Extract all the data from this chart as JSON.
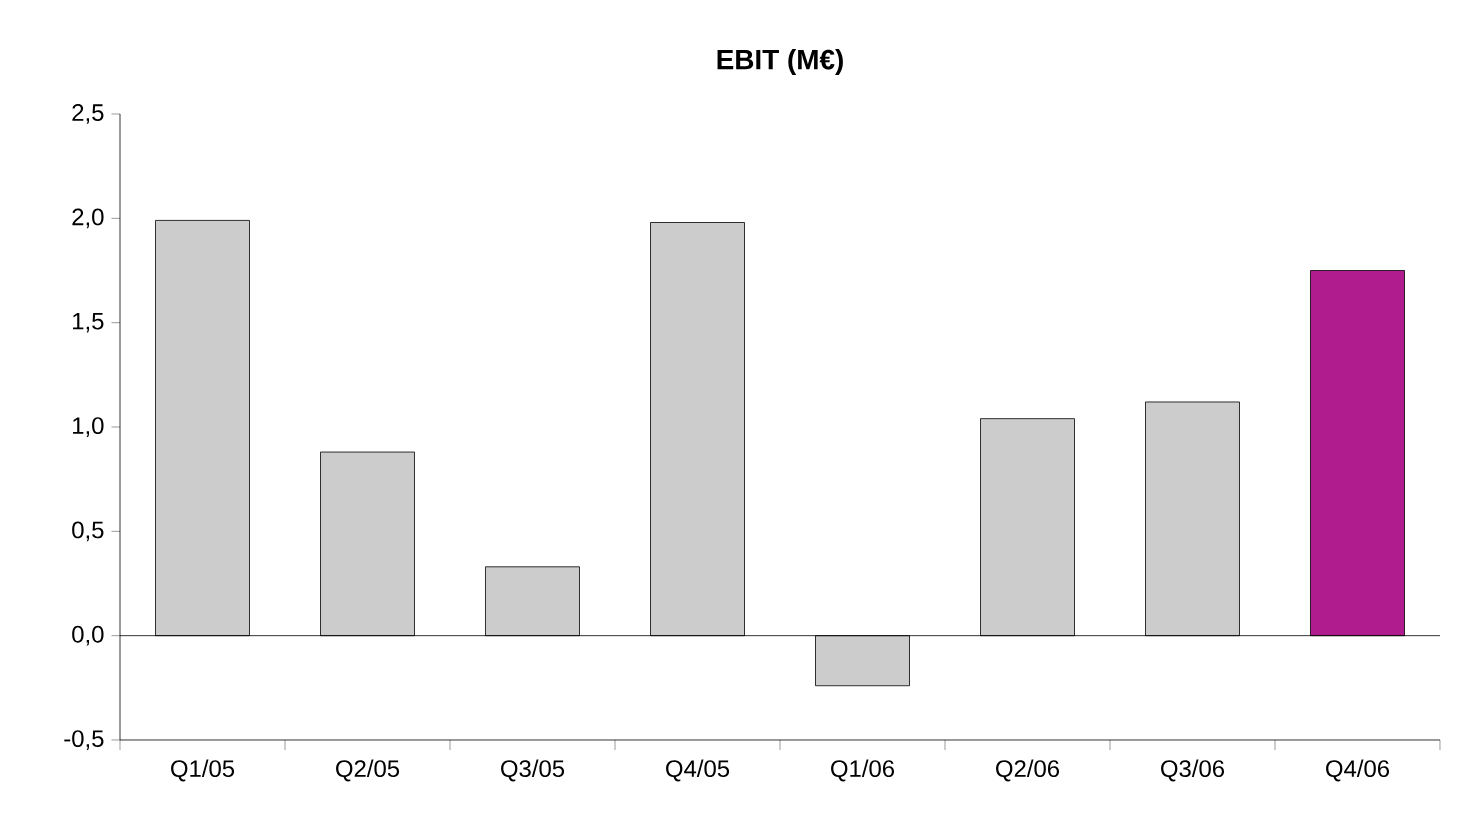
{
  "chart_data": {
    "type": "bar",
    "title": "EBIT (M€)",
    "categories": [
      "Q1/05",
      "Q2/05",
      "Q3/05",
      "Q4/05",
      "Q1/06",
      "Q2/06",
      "Q3/06",
      "Q4/06"
    ],
    "values": [
      1.99,
      0.88,
      0.33,
      1.98,
      -0.24,
      1.04,
      1.12,
      1.75
    ],
    "colors": [
      "#cccccc",
      "#cccccc",
      "#cccccc",
      "#cccccc",
      "#cccccc",
      "#cccccc",
      "#cccccc",
      "#b01c8e"
    ],
    "ylim": [
      -0.5,
      2.5
    ],
    "yticks": [
      {
        "value": -0.5,
        "label": "-0,5"
      },
      {
        "value": 0,
        "label": "0,0"
      },
      {
        "value": 0.5,
        "label": "0,5"
      },
      {
        "value": 1,
        "label": "1,0"
      },
      {
        "value": 1.5,
        "label": "1,5"
      },
      {
        "value": 2,
        "label": "2,0"
      },
      {
        "value": 2.5,
        "label": "2,5"
      }
    ],
    "ref_lines": [
      {
        "axis": "y",
        "value": 0,
        "color": "#000000"
      }
    ],
    "grid": false
  }
}
